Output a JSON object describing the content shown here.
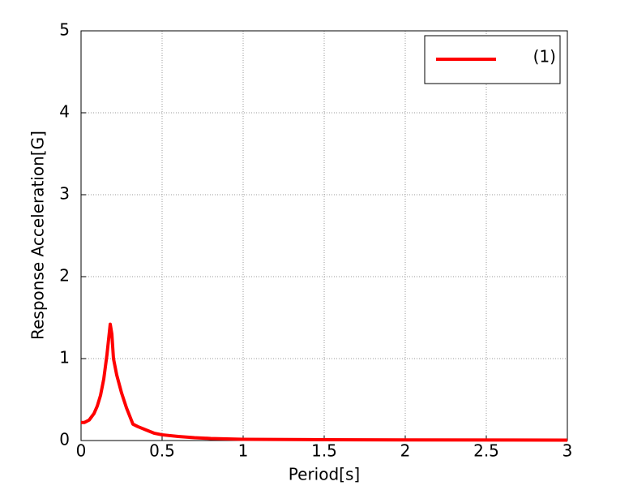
{
  "chart_data": {
    "type": "line",
    "xlabel": "Period[s]",
    "ylabel": "Response Acceleration[G]",
    "x": [
      0,
      0.02,
      0.05,
      0.08,
      0.1,
      0.12,
      0.14,
      0.16,
      0.18,
      0.19,
      0.2,
      0.22,
      0.25,
      0.28,
      0.32,
      0.35,
      0.4,
      0.45,
      0.5,
      0.6,
      0.7,
      0.8,
      1.0,
      1.5,
      2.0,
      3.0
    ],
    "series": [
      {
        "name": "(1)",
        "color": "#ff0000",
        "values": [
          0.22,
          0.22,
          0.25,
          0.33,
          0.42,
          0.55,
          0.75,
          1.05,
          1.42,
          1.3,
          1.0,
          0.8,
          0.58,
          0.4,
          0.2,
          0.17,
          0.13,
          0.09,
          0.07,
          0.05,
          0.035,
          0.025,
          0.015,
          0.01,
          0.008,
          0.005
        ]
      }
    ],
    "xlim": [
      0,
      3
    ],
    "ylim": [
      0,
      5
    ],
    "xticks": [
      0,
      0.5,
      1,
      1.5,
      2,
      2.5,
      3
    ],
    "yticks": [
      0,
      1,
      2,
      3,
      4,
      5
    ],
    "grid": true,
    "legend": "upper right"
  }
}
